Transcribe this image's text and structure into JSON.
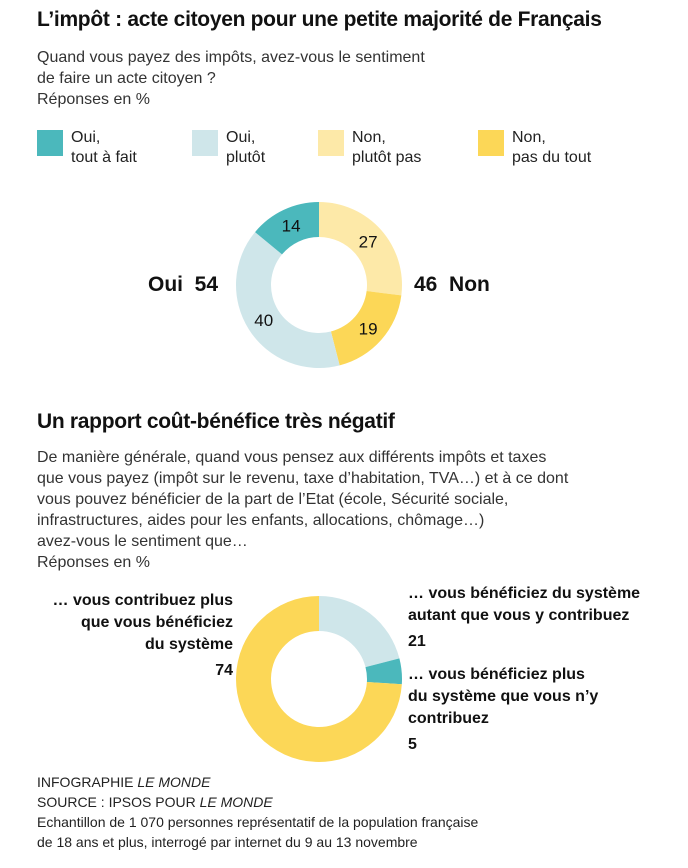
{
  "chart1": {
    "title": "L’impôt : acte citoyen pour une petite majorité de Français",
    "question_line1": "Quand vous payez des impôts, avez-vous le sentiment",
    "question_line2": "de faire un acte citoyen ?",
    "units": "Réponses en %",
    "legend": [
      {
        "line1": "Oui,",
        "line2": "tout à fait",
        "color": "#4bb8bc"
      },
      {
        "line1": "Oui,",
        "line2": "plutôt",
        "color": "#cfe6ea"
      },
      {
        "line1": "Non,",
        "line2": "plutôt pas",
        "color": "#fde9a8"
      },
      {
        "line1": "Non,",
        "line2": "pas du tout",
        "color": "#fcd757"
      }
    ],
    "oui_label": "Oui",
    "oui_value": "54",
    "non_value": "46",
    "non_label": "Non"
  },
  "chart2": {
    "title": "Un rapport coût-bénéfice très négatif",
    "question_lines": [
      "De manière générale, quand vous pensez aux différents impôts et taxes",
      "que vous payez (impôt sur le revenu, taxe d’habitation, TVA…) et à ce dont",
      "vous pouvez bénéficier de la part de l’Etat (école, Sécurité sociale,",
      "infrastructures, aides pour les enfants, allocations, chômage…)",
      "avez-vous le sentiment que…"
    ],
    "units": "Réponses en %",
    "label_left": [
      "… vous contribuez plus",
      "que vous bénéficiez",
      "du système"
    ],
    "label_left_value": "74",
    "label_right_top": [
      "… vous bénéficiez du système",
      "autant que vous y contribuez"
    ],
    "label_right_top_value": "21",
    "label_right_bottom": [
      "… vous bénéficiez plus",
      "du système que vous n’y",
      "contribuez"
    ],
    "label_right_bottom_value": "5"
  },
  "chart_data": [
    {
      "type": "pie",
      "categories": [
        "Oui, tout à fait",
        "Oui, plutôt",
        "Non, plutôt pas",
        "Non, pas du tout"
      ],
      "values": [
        14,
        40,
        27,
        19
      ],
      "colors": [
        "#4bb8bc",
        "#cfe6ea",
        "#fde9a8",
        "#fcd757"
      ],
      "title": "L’impôt : acte citoyen pour une petite majorité de Français"
    },
    {
      "type": "pie",
      "categories": [
        "… vous bénéficiez du système autant que vous y contribuez",
        "… vous bénéficiez plus du système que vous n’y contribuez",
        "… vous contribuez plus que vous bénéficiez du système"
      ],
      "values": [
        21,
        5,
        74
      ],
      "colors": [
        "#cfe6ea",
        "#4bb8bc",
        "#fcd757"
      ],
      "title": "Un rapport coût-bénéfice très négatif"
    }
  ],
  "footer": {
    "credit_prefix": "INFOGRAPHIE ",
    "credit_italic": "LE MONDE",
    "source_prefix": "SOURCE : IPSOS POUR ",
    "source_italic": "LE MONDE",
    "note_line1": "Echantillon de 1 070 personnes représentatif de la population française",
    "note_line2": "de 18 ans et plus, interrogé par internet du 9 au 13 novembre"
  }
}
